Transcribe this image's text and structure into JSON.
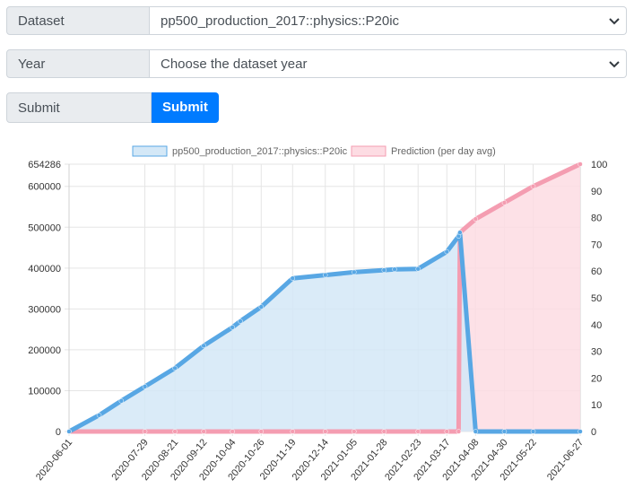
{
  "form": {
    "dataset_label": "Dataset",
    "dataset_value": "pp500_production_2017::physics::P20ic",
    "year_label": "Year",
    "year_value": "Choose the dataset year",
    "submit_label": "Submit",
    "submit_button": "Submit"
  },
  "colors": {
    "primary": "#007bff",
    "series_line": "#58a7e4",
    "series_fill": "#d4e8f7",
    "prediction_line": "#f49db1",
    "prediction_fill": "#fddce3"
  },
  "chart_data": {
    "type": "line",
    "title": "",
    "x_tick_labels": [
      "2020-06-01",
      "2020-07-29",
      "2020-08-21",
      "2020-09-12",
      "2020-10-04",
      "2020-10-26",
      "2020-11-19",
      "2020-12-14",
      "2021-01-05",
      "2021-01-28",
      "2021-02-23",
      "2021-03-17",
      "2021-04-08",
      "2021-04-30",
      "2021-05-22",
      "2021-06-27"
    ],
    "y_left": {
      "ticks": [
        0,
        100000,
        200000,
        300000,
        400000,
        500000,
        600000,
        654286
      ],
      "range": [
        0,
        654286
      ]
    },
    "y_right": {
      "ticks": [
        0,
        10,
        20,
        30,
        40,
        50,
        60,
        70,
        80,
        90,
        100
      ],
      "range": [
        0,
        100
      ]
    },
    "grid": true,
    "legend_position": "top",
    "series": [
      {
        "name": "pp500_production_2017::physics::P20ic",
        "axis": "left",
        "x": [
          "2020-06-01",
          "2020-06-24",
          "2020-07-11",
          "2020-07-29",
          "2020-08-21",
          "2020-09-12",
          "2020-10-04",
          "2020-10-10",
          "2020-10-26",
          "2020-11-19",
          "2020-12-14",
          "2021-01-05",
          "2021-01-28",
          "2021-02-05",
          "2021-02-23",
          "2021-03-17",
          "2021-03-26",
          "2021-03-27",
          "2021-04-08",
          "2021-04-30",
          "2021-05-22",
          "2021-06-27"
        ],
        "values": [
          0,
          40000,
          75000,
          110000,
          155000,
          210000,
          255000,
          270000,
          305000,
          375000,
          383000,
          390000,
          395000,
          397000,
          398000,
          440000,
          478000,
          487000,
          0,
          0,
          0,
          0
        ]
      },
      {
        "name": "Prediction (per day avg)",
        "axis": "left",
        "x": [
          "2020-06-01",
          "2020-07-29",
          "2020-08-21",
          "2020-09-12",
          "2020-10-04",
          "2020-10-26",
          "2020-11-19",
          "2020-12-14",
          "2021-01-05",
          "2021-01-28",
          "2021-02-23",
          "2021-03-17",
          "2021-03-26",
          "2021-03-27",
          "2021-04-08",
          "2021-04-30",
          "2021-05-22",
          "2021-06-27"
        ],
        "values": [
          0,
          0,
          0,
          0,
          0,
          0,
          0,
          0,
          0,
          0,
          0,
          0,
          0,
          487000,
          520000,
          560000,
          600000,
          654286
        ]
      }
    ]
  }
}
